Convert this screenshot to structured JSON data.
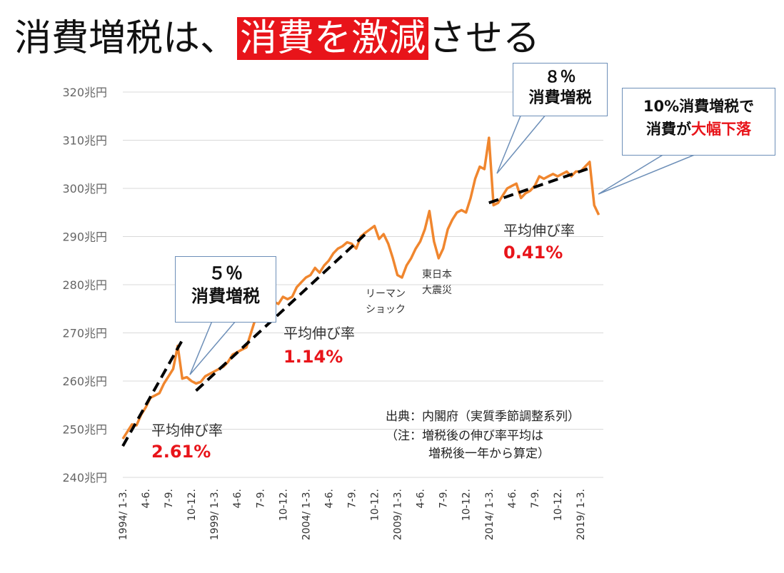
{
  "title": {
    "prefix": "消費増税は、",
    "highlight": "消費を激減",
    "suffix": "させる"
  },
  "colors": {
    "line": "#f0862e",
    "trend": "#000000",
    "accent": "#e8141a",
    "grid": "#d9d9d9",
    "callout_border": "#6d8fb8"
  },
  "chart_data": {
    "type": "line",
    "title": "消費増税は、消費を激減させる",
    "xlabel": "",
    "ylabel": "",
    "ylim": [
      240,
      320
    ],
    "y_ticks": [
      {
        "value": 320,
        "label": "320兆円"
      },
      {
        "value": 310,
        "label": "310兆円"
      },
      {
        "value": 300,
        "label": "300兆円"
      },
      {
        "value": 290,
        "label": "290兆円"
      },
      {
        "value": 280,
        "label": "280兆円"
      },
      {
        "value": 270,
        "label": "270兆円"
      },
      {
        "value": 260,
        "label": "260兆円"
      },
      {
        "value": 250,
        "label": "250兆円"
      },
      {
        "value": 240,
        "label": "240兆円"
      }
    ],
    "x_range": [
      1994.0,
      2020.25
    ],
    "x_ticks": [
      {
        "x": 1994.0,
        "label": "1994/ 1-3."
      },
      {
        "x": 1995.25,
        "label": "4-6."
      },
      {
        "x": 1996.5,
        "label": "7-9."
      },
      {
        "x": 1997.75,
        "label": "10-12."
      },
      {
        "x": 1999.0,
        "label": "1999/ 1-3."
      },
      {
        "x": 2000.25,
        "label": "4-6."
      },
      {
        "x": 2001.5,
        "label": "7-9."
      },
      {
        "x": 2002.75,
        "label": "10-12."
      },
      {
        "x": 2004.0,
        "label": "2004/ 1-3."
      },
      {
        "x": 2005.25,
        "label": "4-6."
      },
      {
        "x": 2006.5,
        "label": "7-9."
      },
      {
        "x": 2007.75,
        "label": "10-12."
      },
      {
        "x": 2009.0,
        "label": "2009/ 1-3."
      },
      {
        "x": 2010.25,
        "label": "4-6."
      },
      {
        "x": 2011.5,
        "label": "7-9."
      },
      {
        "x": 2012.75,
        "label": "10-12."
      },
      {
        "x": 2014.0,
        "label": "2014/ 1-3."
      },
      {
        "x": 2015.25,
        "label": "4-6."
      },
      {
        "x": 2016.5,
        "label": "7-9."
      },
      {
        "x": 2017.75,
        "label": "10-12."
      },
      {
        "x": 2019.0,
        "label": "2019/ 1-3."
      }
    ],
    "series": [
      {
        "color": "#f0862e",
        "points": [
          [
            1994.0,
            248.0
          ],
          [
            1994.25,
            249.5
          ],
          [
            1994.5,
            251.0
          ],
          [
            1994.75,
            250.8
          ],
          [
            1995.0,
            253.0
          ],
          [
            1995.25,
            254.5
          ],
          [
            1995.5,
            256.5
          ],
          [
            1995.75,
            257.0
          ],
          [
            1996.0,
            257.5
          ],
          [
            1996.25,
            259.5
          ],
          [
            1996.5,
            261.0
          ],
          [
            1996.75,
            262.5
          ],
          [
            1997.0,
            267.3
          ],
          [
            1997.25,
            260.5
          ],
          [
            1997.5,
            260.8
          ],
          [
            1997.75,
            260.0
          ],
          [
            1998.0,
            259.5
          ],
          [
            1998.25,
            259.8
          ],
          [
            1998.5,
            261.0
          ],
          [
            1998.75,
            261.5
          ],
          [
            1999.0,
            262.0
          ],
          [
            1999.25,
            262.5
          ],
          [
            1999.5,
            263.0
          ],
          [
            1999.75,
            264.0
          ],
          [
            2000.0,
            265.5
          ],
          [
            2000.25,
            266.0
          ],
          [
            2000.5,
            266.5
          ],
          [
            2000.75,
            267.0
          ],
          [
            2001.0,
            270.0
          ],
          [
            2001.25,
            273.0
          ],
          [
            2001.5,
            273.8
          ],
          [
            2001.75,
            273.5
          ],
          [
            2002.0,
            274.5
          ],
          [
            2002.25,
            276.5
          ],
          [
            2002.5,
            276.0
          ],
          [
            2002.75,
            277.5
          ],
          [
            2003.0,
            277.0
          ],
          [
            2003.25,
            277.5
          ],
          [
            2003.5,
            279.5
          ],
          [
            2003.75,
            280.5
          ],
          [
            2004.0,
            281.5
          ],
          [
            2004.25,
            282.0
          ],
          [
            2004.5,
            283.5
          ],
          [
            2004.75,
            282.5
          ],
          [
            2005.0,
            284.0
          ],
          [
            2005.25,
            285.0
          ],
          [
            2005.5,
            286.5
          ],
          [
            2005.75,
            287.5
          ],
          [
            2006.0,
            288.0
          ],
          [
            2006.25,
            288.8
          ],
          [
            2006.5,
            288.5
          ],
          [
            2006.75,
            287.5
          ],
          [
            2007.0,
            290.0
          ],
          [
            2007.25,
            290.8
          ],
          [
            2007.5,
            291.5
          ],
          [
            2007.75,
            292.2
          ],
          [
            2008.0,
            289.5
          ],
          [
            2008.25,
            290.5
          ],
          [
            2008.5,
            288.5
          ],
          [
            2008.75,
            285.5
          ],
          [
            2009.0,
            282.0
          ],
          [
            2009.25,
            281.5
          ],
          [
            2009.5,
            284.0
          ],
          [
            2009.75,
            285.5
          ],
          [
            2010.0,
            287.5
          ],
          [
            2010.25,
            289.0
          ],
          [
            2010.5,
            291.5
          ],
          [
            2010.75,
            295.3
          ],
          [
            2011.0,
            289.0
          ],
          [
            2011.25,
            285.5
          ],
          [
            2011.5,
            287.5
          ],
          [
            2011.75,
            291.5
          ],
          [
            2012.0,
            293.5
          ],
          [
            2012.25,
            295.0
          ],
          [
            2012.5,
            295.5
          ],
          [
            2012.75,
            295.0
          ],
          [
            2013.0,
            298.0
          ],
          [
            2013.25,
            302.0
          ],
          [
            2013.5,
            304.5
          ],
          [
            2013.75,
            304.0
          ],
          [
            2014.0,
            310.5
          ],
          [
            2014.25,
            296.5
          ],
          [
            2014.5,
            297.0
          ],
          [
            2014.75,
            298.5
          ],
          [
            2015.0,
            300.0
          ],
          [
            2015.25,
            300.5
          ],
          [
            2015.5,
            301.0
          ],
          [
            2015.75,
            298.0
          ],
          [
            2016.0,
            299.0
          ],
          [
            2016.25,
            299.5
          ],
          [
            2016.5,
            300.5
          ],
          [
            2016.75,
            302.5
          ],
          [
            2017.0,
            302.0
          ],
          [
            2017.25,
            302.5
          ],
          [
            2017.5,
            303.0
          ],
          [
            2017.75,
            302.5
          ],
          [
            2018.0,
            303.0
          ],
          [
            2018.25,
            303.5
          ],
          [
            2018.5,
            302.5
          ],
          [
            2018.75,
            303.5
          ],
          [
            2019.0,
            303.5
          ],
          [
            2019.25,
            304.5
          ],
          [
            2019.5,
            305.5
          ],
          [
            2019.75,
            296.5
          ],
          [
            2020.0,
            294.5
          ]
        ]
      }
    ],
    "trend_lines": [
      {
        "label": "平均伸び率",
        "rate": "2.61%",
        "from": [
          1994.0,
          246.5
        ],
        "to": [
          1997.25,
          268.5
        ]
      },
      {
        "label": "平均伸び率",
        "rate": "1.14%",
        "from": [
          1998.0,
          258.0
        ],
        "to": [
          2007.25,
          290.5
        ]
      },
      {
        "label": "平均伸び率",
        "rate": "0.41%",
        "from": [
          2014.0,
          297.0
        ],
        "to": [
          2019.5,
          304.2
        ]
      }
    ],
    "legend": null,
    "grid": true
  },
  "annotations": {
    "growth1": {
      "label": "平均伸び率",
      "rate": "2.61%"
    },
    "growth2": {
      "label": "平均伸び率",
      "rate": "1.14%"
    },
    "growth3": {
      "label": "平均伸び率",
      "rate": "0.41%"
    },
    "lehman": {
      "line1": "リーマン",
      "line2": "ショック"
    },
    "earthquake": {
      "line1": "東日本",
      "line2": "大震災"
    },
    "source": {
      "line1": "出典：内閣府（実質季節調整系列）",
      "line2": "（注：増税後の伸び率平均は",
      "line3": "増税後一年から算定）"
    }
  },
  "callouts": {
    "tax5": {
      "line1": "５％",
      "line2": "消費増税"
    },
    "tax8": {
      "line1": "８％",
      "line2": "消費増税"
    },
    "tax10": {
      "line1a": "10%消費増税で",
      "line2a": "消費が",
      "line2b": "大幅下落"
    }
  }
}
